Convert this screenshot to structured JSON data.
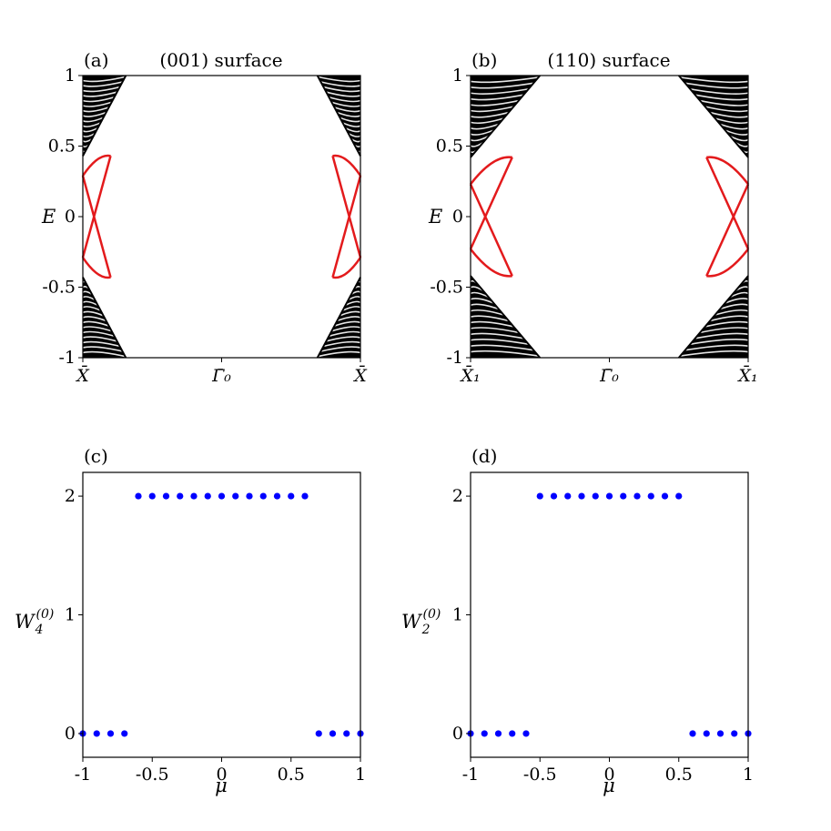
{
  "chart_data": [
    {
      "type": "line",
      "panel_label": "(a)",
      "title": "(001) surface",
      "ylabel": "E",
      "xlim": [
        0,
        1
      ],
      "ylim": [
        -1,
        1
      ],
      "yticks": [
        "1",
        "0.5",
        "0",
        "-0.5",
        "-1"
      ],
      "xtick_labels": [
        "X̄",
        "Γ̄₀",
        "X̄"
      ],
      "xtick_positions": [
        0,
        0.5,
        1
      ],
      "bulk_color": "#000000",
      "edge_state_color": "#e31a1c",
      "bulk_bands": {
        "gap_edge": 0.43,
        "k_extent": 0.155,
        "count": 16
      },
      "edge_states": {
        "node_energy": 0.29,
        "k_crossing": 0.04,
        "k_join": 0.1,
        "join_energy": 0.43
      }
    },
    {
      "type": "line",
      "panel_label": "(b)",
      "title": "(110) surface",
      "ylabel": "E",
      "xlim": [
        0,
        1
      ],
      "ylim": [
        -1,
        1
      ],
      "yticks": [
        "1",
        "0.5",
        "0",
        "-0.5",
        "-1"
      ],
      "xtick_labels": [
        "X̄₁",
        "Γ̄₀",
        "X̄₁"
      ],
      "xtick_positions": [
        0,
        0.5,
        1
      ],
      "bulk_color": "#000000",
      "edge_state_color": "#e31a1c",
      "bulk_bands": {
        "gap_edge": 0.42,
        "k_extent": 0.25,
        "count": 14
      },
      "edge_states": {
        "node_energy": 0.23,
        "k_crossing": 0.065,
        "k_join": 0.15,
        "join_energy": 0.42
      }
    },
    {
      "type": "scatter",
      "panel_label": "(c)",
      "title": "",
      "xlabel": "μ",
      "ylabel": "W4(0)",
      "xlim": [
        -1,
        1
      ],
      "ylim": [
        -0.2,
        2.2
      ],
      "xticks": [
        "-1",
        "-0.5",
        "0",
        "0.5",
        "1"
      ],
      "yticks": [
        "0",
        "1",
        "2"
      ],
      "color": "#0000ff",
      "x": [
        -1.0,
        -0.9,
        -0.8,
        -0.7,
        -0.6,
        -0.5,
        -0.4,
        -0.3,
        -0.2,
        -0.1,
        0.0,
        0.1,
        0.2,
        0.3,
        0.4,
        0.5,
        0.6,
        0.7,
        0.8,
        0.9,
        1.0
      ],
      "y": [
        0,
        0,
        0,
        0,
        2,
        2,
        2,
        2,
        2,
        2,
        2,
        2,
        2,
        2,
        2,
        2,
        2,
        0,
        0,
        0,
        0
      ]
    },
    {
      "type": "scatter",
      "panel_label": "(d)",
      "title": "",
      "xlabel": "μ",
      "ylabel": "W2(0)",
      "xlim": [
        -1,
        1
      ],
      "ylim": [
        -0.2,
        2.2
      ],
      "xticks": [
        "-1",
        "-0.5",
        "0",
        "0.5",
        "1"
      ],
      "yticks": [
        "0",
        "1",
        "2"
      ],
      "color": "#0000ff",
      "x": [
        -1.0,
        -0.9,
        -0.8,
        -0.7,
        -0.6,
        -0.5,
        -0.4,
        -0.3,
        -0.2,
        -0.1,
        0.0,
        0.1,
        0.2,
        0.3,
        0.4,
        0.5,
        0.6,
        0.7,
        0.8,
        0.9,
        1.0
      ],
      "y": [
        0,
        0,
        0,
        0,
        0,
        2,
        2,
        2,
        2,
        2,
        2,
        2,
        2,
        2,
        2,
        2,
        0,
        0,
        0,
        0,
        0
      ]
    }
  ]
}
